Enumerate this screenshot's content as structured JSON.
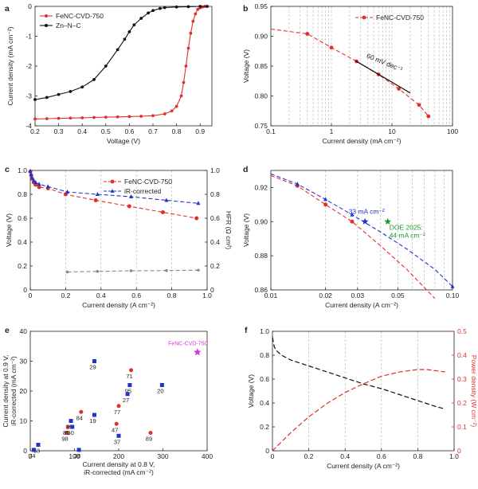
{
  "panels": {
    "a": {
      "label": "a",
      "type": "line",
      "xlabel": "Voltage (V)",
      "ylabel": "Current density (mA cm⁻²)",
      "xlim": [
        0.2,
        0.95
      ],
      "ylim": [
        -4,
        0
      ],
      "xticks": [
        "0.2",
        "0.3",
        "0.4",
        "0.5",
        "0.6",
        "0.7",
        "0.8",
        "0.9"
      ],
      "yticks": [
        "0",
        "-1",
        "-2",
        "-3",
        "-4"
      ],
      "legend": {
        "position": "top-left",
        "entries": [
          "FeNC-CVD-750",
          "Zn–N–C"
        ]
      },
      "series": [
        {
          "name": "FeNC-CVD-750",
          "color": "#e0302b",
          "x": [
            0.2,
            0.25,
            0.3,
            0.35,
            0.4,
            0.45,
            0.5,
            0.55,
            0.6,
            0.65,
            0.7,
            0.75,
            0.78,
            0.8,
            0.82,
            0.83,
            0.84,
            0.85,
            0.86,
            0.87,
            0.88,
            0.89,
            0.9,
            0.91,
            0.92
          ],
          "y": [
            -3.77,
            -3.76,
            -3.75,
            -3.74,
            -3.73,
            -3.72,
            -3.71,
            -3.7,
            -3.69,
            -3.68,
            -3.66,
            -3.6,
            -3.5,
            -3.35,
            -3.0,
            -2.55,
            -2.0,
            -1.4,
            -0.9,
            -0.5,
            -0.25,
            -0.1,
            -0.05,
            -0.02,
            0.0
          ]
        },
        {
          "name": "Zn–N–C",
          "color": "#111111",
          "x": [
            0.2,
            0.25,
            0.3,
            0.35,
            0.4,
            0.45,
            0.5,
            0.55,
            0.58,
            0.6,
            0.62,
            0.65,
            0.68,
            0.7,
            0.73,
            0.75,
            0.8,
            0.85,
            0.9,
            0.93
          ],
          "y": [
            -3.12,
            -3.05,
            -2.95,
            -2.85,
            -2.7,
            -2.45,
            -2.0,
            -1.45,
            -1.1,
            -0.85,
            -0.62,
            -0.4,
            -0.22,
            -0.14,
            -0.07,
            -0.04,
            -0.02,
            -0.01,
            0.0,
            0.0
          ]
        }
      ]
    },
    "b": {
      "label": "b",
      "type": "line",
      "xlabel": "Current density (mA cm⁻²)",
      "ylabel": "Voltage (V)",
      "xscale": "log",
      "xlim": [
        0.1,
        100
      ],
      "ylim": [
        0.75,
        0.95
      ],
      "xticks": [
        "0.1",
        "1",
        "10",
        "100"
      ],
      "yticks": [
        "0.75",
        "0.80",
        "0.85",
        "0.90",
        "0.95"
      ],
      "legend": {
        "position": "top-right",
        "entries": [
          "FeNC-CVD-750"
        ]
      },
      "annotation": "60 mV dec⁻¹",
      "series": [
        {
          "name": "FeNC-CVD-750",
          "color": "#e0302b",
          "x": [
            0.4,
            1.0,
            2.6,
            6.0,
            13,
            28,
            40
          ],
          "y": [
            0.904,
            0.881,
            0.858,
            0.836,
            0.812,
            0.785,
            0.766
          ]
        }
      ],
      "tafel_line": {
        "x": [
          2.5,
          20
        ],
        "y": [
          0.859,
          0.805
        ]
      }
    },
    "c": {
      "label": "c",
      "type": "line",
      "xlabel": "Current density (A cm⁻²)",
      "ylabel": "Voltage (V)",
      "ylabel_right": "HFR (Ω cm²)",
      "xlim": [
        0,
        1.0
      ],
      "ylim": [
        0,
        1.0
      ],
      "ylim_right": [
        0,
        1.0
      ],
      "xticks": [
        "0",
        "0.2",
        "0.4",
        "0.6",
        "0.8",
        "1.0"
      ],
      "yticks": [
        "0",
        "0.2",
        "0.4",
        "0.6",
        "0.8",
        "1.0"
      ],
      "yticks_right": [
        "0",
        "0.2",
        "0.4",
        "0.6",
        "0.8",
        "1.0"
      ],
      "legend": {
        "position": "top-right",
        "entries": [
          "FeNC-CVD-750",
          "iR-corrected"
        ]
      },
      "series": [
        {
          "name": "FeNC-CVD-750",
          "color": "#e0302b",
          "x": [
            0.0,
            0.005,
            0.01,
            0.02,
            0.03,
            0.05,
            0.1,
            0.2,
            0.37,
            0.56,
            0.75,
            0.94
          ],
          "y": [
            0.99,
            0.96,
            0.93,
            0.9,
            0.88,
            0.86,
            0.85,
            0.8,
            0.75,
            0.7,
            0.65,
            0.6
          ]
        },
        {
          "name": "iR-corrected",
          "color": "#1f35c9",
          "x": [
            0.0,
            0.005,
            0.01,
            0.02,
            0.03,
            0.05,
            0.1,
            0.21,
            0.38,
            0.57,
            0.77,
            0.95
          ],
          "y": [
            0.995,
            0.965,
            0.94,
            0.915,
            0.9,
            0.885,
            0.865,
            0.82,
            0.8,
            0.78,
            0.75,
            0.725
          ]
        },
        {
          "name": "HFR",
          "color": "#888888",
          "x": [
            0.21,
            0.38,
            0.57,
            0.77,
            0.95
          ],
          "y": [
            0.15,
            0.155,
            0.16,
            0.162,
            0.165
          ]
        }
      ]
    },
    "d": {
      "label": "d",
      "type": "line",
      "xlabel": "Current density (A cm⁻²)",
      "ylabel": "Voltage (V)",
      "xscale": "log",
      "xlim": [
        0.01,
        0.1
      ],
      "ylim": [
        0.86,
        0.93
      ],
      "xticks": [
        "0.01",
        "0.02",
        "0.03",
        "0.05",
        "0.10"
      ],
      "yticks": [
        "0.86",
        "0.88",
        "0.90",
        "0.92"
      ],
      "annotations": [
        "33 mA cm⁻²",
        "DOE 2025:",
        "44 mA cm⁻²"
      ],
      "marked_points": [
        {
          "x": 0.033,
          "y": 0.9,
          "color": "#1f35c9"
        },
        {
          "x": 0.044,
          "y": 0.9,
          "color": "#1a9a2a"
        }
      ],
      "series": [
        {
          "name": "FeNC-CVD-750",
          "color": "#e0302b",
          "x": [
            0.01,
            0.014,
            0.02,
            0.028,
            0.04,
            0.056,
            0.08
          ],
          "y": [
            0.927,
            0.921,
            0.91,
            0.9,
            0.886,
            0.872,
            0.855
          ]
        },
        {
          "name": "iR-corrected",
          "color": "#1f35c9",
          "x": [
            0.01,
            0.014,
            0.02,
            0.028,
            0.04,
            0.056,
            0.08,
            0.1
          ],
          "y": [
            0.928,
            0.922,
            0.913,
            0.904,
            0.894,
            0.884,
            0.872,
            0.862
          ]
        }
      ]
    },
    "e": {
      "label": "e",
      "type": "scatter",
      "xlabel_lines": [
        "Current density at 0.8 V,",
        "iR-corrected (mA cm⁻²)"
      ],
      "ylabel_lines": [
        "Current density at 0.9 V,",
        "iR-corrected (mA cm⁻²)"
      ],
      "xlim": [
        0,
        400
      ],
      "ylim": [
        0,
        40
      ],
      "xticks": [
        "0",
        "100",
        "200",
        "300",
        "400"
      ],
      "yticks": [
        "0",
        "10",
        "20",
        "30",
        "40"
      ],
      "star_label": "FeNC-CVD-750",
      "star": {
        "x": 378,
        "y": 33,
        "color": "#d23ad2"
      },
      "points": [
        {
          "label": "63",
          "x": 18,
          "y": 2,
          "shape": "square"
        },
        {
          "label": "74",
          "x": 8,
          "y": 0.3,
          "shape": "square"
        },
        {
          "label": "98",
          "x": 82,
          "y": 6,
          "shape": "circle"
        },
        {
          "label": "85",
          "x": 85,
          "y": 8,
          "shape": "circle"
        },
        {
          "label": "25",
          "x": 92,
          "y": 10,
          "shape": "square"
        },
        {
          "label": "30",
          "x": 95,
          "y": 8,
          "shape": "square"
        },
        {
          "label": "84",
          "x": 115,
          "y": 13,
          "shape": "circle"
        },
        {
          "label": "28",
          "x": 110,
          "y": 0.3,
          "shape": "square"
        },
        {
          "label": "29",
          "x": 145,
          "y": 30,
          "shape": "square"
        },
        {
          "label": "19",
          "x": 145,
          "y": 12,
          "shape": "square"
        },
        {
          "label": "77",
          "x": 200,
          "y": 15,
          "shape": "circle"
        },
        {
          "label": "47",
          "x": 195,
          "y": 9,
          "shape": "circle"
        },
        {
          "label": "37",
          "x": 200,
          "y": 5,
          "shape": "square"
        },
        {
          "label": "71",
          "x": 228,
          "y": 27,
          "shape": "circle"
        },
        {
          "label": "95",
          "x": 225,
          "y": 22,
          "shape": "square"
        },
        {
          "label": "27",
          "x": 220,
          "y": 19,
          "shape": "square"
        },
        {
          "label": "89",
          "x": 272,
          "y": 6,
          "shape": "circle"
        },
        {
          "label": "20",
          "x": 298,
          "y": 22,
          "shape": "square"
        }
      ]
    },
    "f": {
      "label": "f",
      "type": "line",
      "xlabel": "Current density (A cm⁻²)",
      "ylabel": "Voltage (V)",
      "ylabel_right": "Power density (W cm⁻²)",
      "xlim": [
        0,
        1.0
      ],
      "ylim": [
        0,
        1.0
      ],
      "ylim_right": [
        0,
        0.5
      ],
      "xticks": [
        "0",
        "0.2",
        "0.4",
        "0.6",
        "0.8",
        "1.0"
      ],
      "yticks": [
        "0",
        "0.2",
        "0.4",
        "0.6",
        "0.8",
        "1.0"
      ],
      "yticks_right": [
        "0",
        "0.1",
        "0.2",
        "0.3",
        "0.4",
        "0.5"
      ],
      "series": [
        {
          "name": "Voltage",
          "axis": "left",
          "color": "#111111",
          "x": [
            0.0,
            0.01,
            0.02,
            0.05,
            0.1,
            0.2,
            0.3,
            0.4,
            0.5,
            0.6,
            0.7,
            0.8,
            0.9,
            0.95
          ],
          "y": [
            0.95,
            0.87,
            0.84,
            0.8,
            0.76,
            0.71,
            0.66,
            0.61,
            0.56,
            0.52,
            0.47,
            0.42,
            0.37,
            0.35
          ]
        },
        {
          "name": "Power density",
          "axis": "right",
          "color": "#e0302b",
          "x": [
            0.0,
            0.1,
            0.2,
            0.3,
            0.4,
            0.5,
            0.6,
            0.7,
            0.8,
            0.85,
            0.9,
            0.95
          ],
          "y": [
            0.0,
            0.075,
            0.142,
            0.198,
            0.244,
            0.28,
            0.312,
            0.33,
            0.34,
            0.34,
            0.335,
            0.33
          ]
        }
      ]
    }
  }
}
